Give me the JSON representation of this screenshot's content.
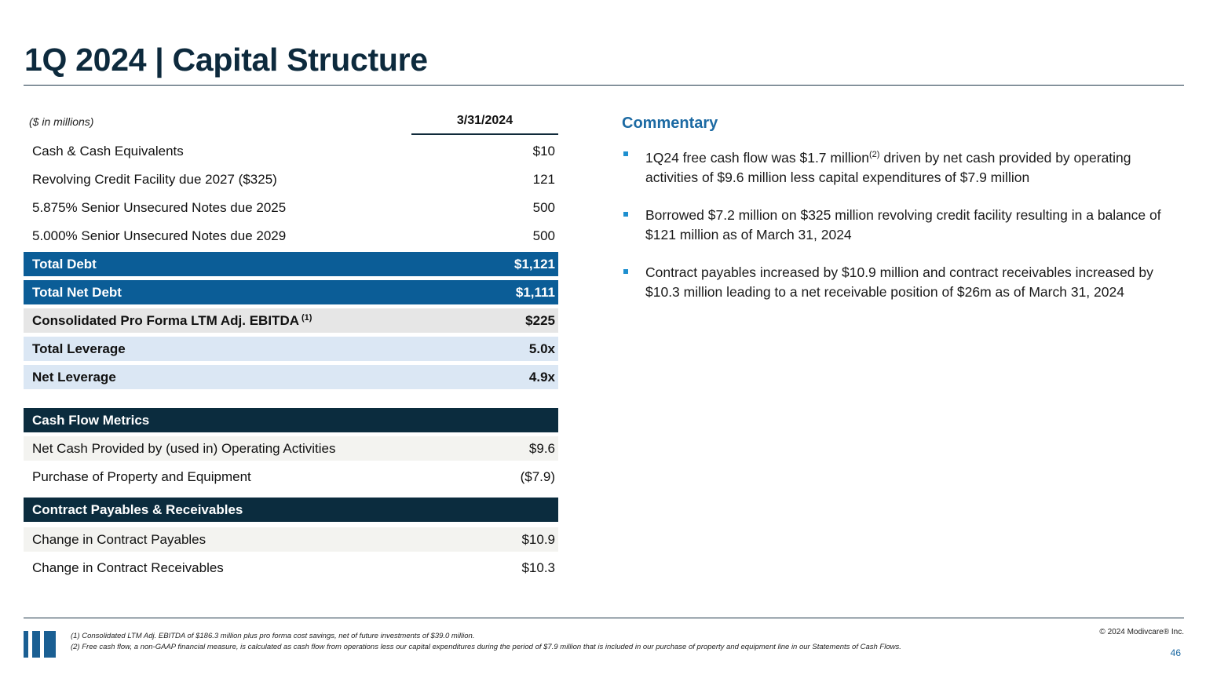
{
  "page": {
    "title": "1Q 2024 | Capital Structure"
  },
  "table": {
    "unit_label": "($ in millions)",
    "date_header": "3/31/2024",
    "debt_rows": [
      {
        "label": "Cash & Cash Equivalents",
        "value": "$10"
      },
      {
        "label": "Revolving Credit Facility due 2027 ($325)",
        "value": "121"
      },
      {
        "label": "5.875% Senior Unsecured Notes due 2025",
        "value": "500"
      },
      {
        "label": "5.000% Senior Unsecured Notes due 2029",
        "value": "500"
      }
    ],
    "total_debt": {
      "label": "Total Debt",
      "value": "$1,121"
    },
    "total_net_debt": {
      "label": "Total Net Debt",
      "value": "$1,111"
    },
    "ebitda": {
      "label": "Consolidated Pro Forma LTM Adj. EBITDA",
      "footnote": "(1)",
      "value": "$225"
    },
    "total_leverage": {
      "label": "Total Leverage",
      "value": "5.0x"
    },
    "net_leverage": {
      "label": "Net Leverage",
      "value": "4.9x"
    }
  },
  "cash_flow": {
    "header": "Cash Flow Metrics",
    "rows": [
      {
        "label": "Net Cash Provided by (used in) Operating Activities",
        "value": "$9.6"
      },
      {
        "label": "Purchase of Property and Equipment",
        "value": "($7.9)"
      }
    ]
  },
  "contract": {
    "header": "Contract Payables & Receivables",
    "rows": [
      {
        "label": "Change in Contract Payables",
        "value": "$10.9"
      },
      {
        "label": "Change in Contract Receivables",
        "value": "$10.3"
      }
    ]
  },
  "commentary": {
    "title": "Commentary",
    "bullets": [
      {
        "before": "1Q24 free cash flow was $1.7 million",
        "sup": "(2)",
        "after": " driven by net cash provided by operating activities of $9.6 million less capital expenditures of $7.9 million"
      },
      {
        "before": "Borrowed $7.2 million on $325 million revolving credit facility resulting in a balance of $121 million as of March 31, 2024",
        "sup": "",
        "after": ""
      },
      {
        "before": "Contract payables increased by $10.9 million and contract receivables increased by $10.3 million leading to a net receivable position of $26m as of March 31, 2024",
        "sup": "",
        "after": ""
      }
    ]
  },
  "footer": {
    "footnote_1": "(1) Consolidated LTM Adj. EBITDA of $186.3 million plus pro forma cost savings, net of future investments of $39.0 million.",
    "footnote_2": "(2) Free cash flow, a non-GAAP financial measure, is calculated as cash flow from operations less our capital expenditures during the period of $7.9 million that is included in our purchase of property and equipment line in our Statements of Cash Flows.",
    "copyright": "© 2024 Modivcare® Inc.",
    "page_number": "46"
  },
  "colors": {
    "title": "#0d2a3d",
    "accent_blue": "#0b5d97",
    "navy": "#0b2c3e",
    "light_blue": "#dbe7f4",
    "grey": "#e6e6e6",
    "bullet": "#1e8fcf"
  }
}
